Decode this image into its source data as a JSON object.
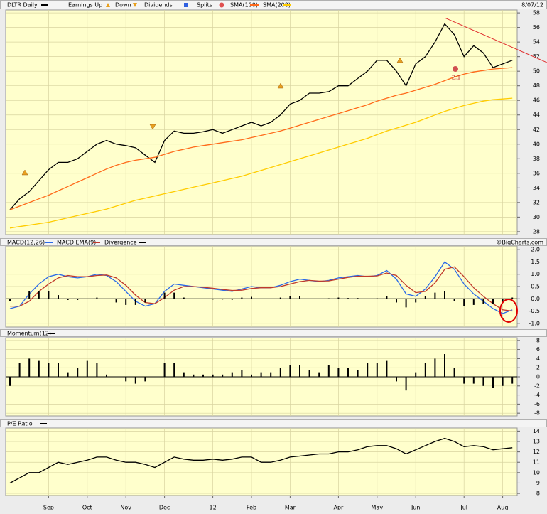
{
  "chart_data": [
    {
      "type": "line",
      "title": "DLTR Daily",
      "date": "8/07/12",
      "markers": [
        {
          "name": "Earnings Up",
          "color": "#e8a020"
        },
        {
          "name": "Down",
          "color": "#e8a020"
        },
        {
          "name": "Dividends",
          "color": "#3060e0"
        },
        {
          "name": "Splits",
          "color": "#e05050"
        }
      ],
      "annotations": [
        "2:1"
      ],
      "ylim": [
        27.6,
        58.4
      ],
      "yticks": [
        28,
        30,
        32,
        34,
        36,
        38,
        40,
        42,
        44,
        46,
        48,
        50,
        52,
        54,
        56,
        58
      ],
      "grid": true,
      "series": [
        {
          "name": "DLTR Daily",
          "color": "#000000",
          "values": [
            31,
            32.5,
            33.5,
            35,
            36.5,
            37.5,
            37.5,
            38,
            39,
            40,
            40.5,
            40,
            39.8,
            39.5,
            38.5,
            37.5,
            40.5,
            41.8,
            41.5,
            41.5,
            41.7,
            42,
            41.5,
            42,
            42.5,
            43,
            42.5,
            43,
            44,
            45.5,
            46,
            47,
            47,
            47.2,
            48,
            48,
            49,
            50,
            51.5,
            51.5,
            50,
            48,
            51,
            52,
            54,
            56.5,
            55,
            52,
            53.5,
            52.5,
            50.5,
            51,
            51.5
          ]
        },
        {
          "name": "SMA(100)",
          "color": "#ff6a1a",
          "values": [
            31,
            31.5,
            32,
            32.5,
            33,
            33.6,
            34.2,
            34.8,
            35.4,
            36,
            36.6,
            37.1,
            37.5,
            37.8,
            38,
            38.2,
            38.6,
            39,
            39.3,
            39.6,
            39.8,
            40,
            40.2,
            40.4,
            40.6,
            40.9,
            41.2,
            41.5,
            41.8,
            42.2,
            42.6,
            43,
            43.4,
            43.8,
            44.2,
            44.6,
            45,
            45.4,
            45.9,
            46.3,
            46.7,
            47,
            47.4,
            47.8,
            48.2,
            48.7,
            49.2,
            49.6,
            49.9,
            50.1,
            50.3,
            50.4,
            50.5
          ]
        },
        {
          "name": "SMA(200)",
          "color": "#ffcc00",
          "values": [
            28.5,
            28.7,
            28.9,
            29.1,
            29.3,
            29.6,
            29.9,
            30.2,
            30.5,
            30.8,
            31.1,
            31.5,
            31.9,
            32.3,
            32.6,
            32.9,
            33.2,
            33.5,
            33.8,
            34.1,
            34.4,
            34.7,
            35,
            35.3,
            35.6,
            36,
            36.4,
            36.8,
            37.2,
            37.6,
            38,
            38.4,
            38.8,
            39.2,
            39.6,
            40,
            40.4,
            40.8,
            41.3,
            41.8,
            42.2,
            42.6,
            43,
            43.5,
            44,
            44.5,
            44.9,
            45.3,
            45.6,
            45.9,
            46.1,
            46.2,
            46.3
          ]
        }
      ]
    },
    {
      "type": "line",
      "credit": "©BigCharts.com",
      "ylim": [
        -1.15,
        2.15
      ],
      "grid": true,
      "yticks": [
        {
          "value": -1,
          "label": "-1.0"
        },
        {
          "value": -0.5,
          "label": "-0.5"
        },
        {
          "value": 0,
          "label": "0.0"
        },
        {
          "value": 0.5,
          "label": "0.5"
        },
        {
          "value": 1,
          "label": "1.0"
        },
        {
          "value": 1.5,
          "label": "1.5"
        },
        {
          "value": 2,
          "label": "2.0"
        }
      ],
      "series": [
        {
          "name": "MACD(12,26)",
          "color": "#2a6ae8",
          "values": [
            -0.4,
            -0.3,
            0.2,
            0.6,
            0.9,
            1.0,
            0.9,
            0.85,
            0.9,
            1.0,
            0.95,
            0.7,
            0.3,
            -0.1,
            -0.3,
            -0.2,
            0.3,
            0.6,
            0.55,
            0.5,
            0.45,
            0.4,
            0.35,
            0.3,
            0.4,
            0.5,
            0.45,
            0.45,
            0.55,
            0.7,
            0.8,
            0.75,
            0.7,
            0.75,
            0.85,
            0.9,
            0.95,
            0.9,
            0.95,
            1.15,
            0.8,
            0.2,
            0.1,
            0.4,
            0.9,
            1.5,
            1.2,
            0.6,
            0.2,
            -0.1,
            -0.4,
            -0.6,
            -0.45
          ]
        },
        {
          "name": "MACD EMA(9)",
          "color": "#c0392b",
          "values": [
            -0.3,
            -0.3,
            -0.1,
            0.3,
            0.6,
            0.85,
            0.95,
            0.9,
            0.9,
            0.95,
            0.97,
            0.85,
            0.55,
            0.15,
            -0.15,
            -0.2,
            0.05,
            0.35,
            0.5,
            0.5,
            0.47,
            0.43,
            0.38,
            0.34,
            0.35,
            0.42,
            0.45,
            0.45,
            0.5,
            0.6,
            0.7,
            0.75,
            0.72,
            0.73,
            0.8,
            0.87,
            0.92,
            0.92,
            0.93,
            1.05,
            0.95,
            0.55,
            0.25,
            0.3,
            0.65,
            1.2,
            1.3,
            0.9,
            0.45,
            0.1,
            -0.2,
            -0.45,
            -0.5
          ]
        },
        {
          "name": "Divergence",
          "type": "bar",
          "color": "#000000",
          "values": [
            -0.1,
            0,
            0.3,
            0.3,
            0.3,
            0.15,
            -0.05,
            -0.05,
            0,
            0.05,
            -0.02,
            -0.15,
            -0.25,
            -0.25,
            -0.15,
            0,
            0.25,
            0.25,
            0.05,
            0,
            -0.02,
            -0.03,
            -0.03,
            -0.04,
            0.05,
            0.08,
            0,
            0,
            0.05,
            0.1,
            0.1,
            0,
            -0.02,
            0.02,
            0.05,
            0.03,
            0.03,
            -0.02,
            0.02,
            0.1,
            -0.15,
            -0.35,
            -0.15,
            0.1,
            0.25,
            0.3,
            -0.1,
            -0.3,
            -0.25,
            -0.2,
            -0.2,
            -0.15,
            0.05
          ]
        }
      ]
    },
    {
      "type": "bar",
      "ylim": [
        -8.6,
        8.6
      ],
      "yticks": [
        -8,
        -6,
        -4,
        -2,
        0,
        2,
        4,
        6,
        8
      ],
      "grid": true,
      "series": [
        {
          "name": "Momentum(12)",
          "color": "#000000",
          "values": [
            -2,
            3,
            4,
            3.5,
            3,
            3,
            1,
            2,
            3.5,
            3,
            0.5,
            0,
            -1,
            -1.5,
            -1,
            0,
            3,
            3,
            1,
            0.5,
            0.5,
            0.5,
            0.5,
            1,
            1.5,
            0.5,
            1,
            1,
            2,
            2.5,
            2.5,
            1.5,
            1,
            2.5,
            2,
            2,
            1.5,
            3,
            3,
            3.5,
            -1,
            -3,
            1,
            3,
            4,
            5,
            2,
            -1.5,
            -1.5,
            -2,
            -2.5,
            -2,
            -1.5
          ]
        }
      ]
    },
    {
      "type": "line",
      "ylim": [
        7.8,
        14.3
      ],
      "yticks": [
        8,
        9,
        10,
        11,
        12,
        13,
        14
      ],
      "grid": true,
      "categories": [
        null,
        null,
        null,
        null,
        "Sep",
        null,
        null,
        null,
        "Oct",
        null,
        null,
        null,
        "Nov",
        null,
        null,
        null,
        "Dec",
        null,
        null,
        null,
        null,
        "12",
        null,
        null,
        null,
        "Feb",
        null,
        null,
        null,
        "Mar",
        null,
        null,
        null,
        null,
        "Apr",
        null,
        null,
        null,
        "May",
        null,
        null,
        null,
        "Jun",
        null,
        null,
        null,
        null,
        "Jul",
        null,
        null,
        null,
        "Aug",
        null
      ],
      "series": [
        {
          "name": "P/E Ratio",
          "color": "#000000",
          "values": [
            9,
            9.5,
            10,
            10,
            10.5,
            11,
            10.8,
            11,
            11.2,
            11.5,
            11.5,
            11.2,
            11,
            11,
            10.8,
            10.5,
            11,
            11.5,
            11.3,
            11.2,
            11.2,
            11.3,
            11.2,
            11.3,
            11.5,
            11.5,
            11,
            11,
            11.2,
            11.5,
            11.6,
            11.7,
            11.8,
            11.8,
            12,
            12,
            12.2,
            12.5,
            12.6,
            12.6,
            12.3,
            11.8,
            12.2,
            12.6,
            13,
            13.3,
            13,
            12.5,
            12.6,
            12.5,
            12.2,
            12.3,
            12.4
          ]
        }
      ]
    }
  ]
}
